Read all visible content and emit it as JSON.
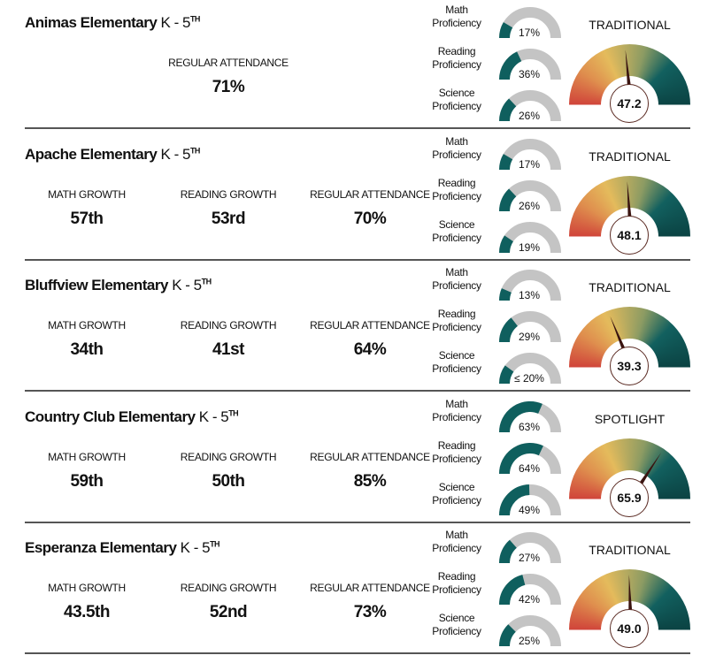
{
  "colors": {
    "fill": "#0f5f5e",
    "track": "#c4c4c4"
  },
  "gauge_range": [
    7,
    93
  ],
  "schools": [
    {
      "name": "Animas Elementary",
      "grade": "K - 5",
      "grade_sup": "TH",
      "stats": [
        {
          "label": "REGULAR ATTENDANCE",
          "value": "71%"
        }
      ],
      "proficiency": [
        {
          "label1": "Math",
          "label2": "Proficiency",
          "value": "17%",
          "pct": 17
        },
        {
          "label1": "Reading",
          "label2": "Proficiency",
          "value": "36%",
          "pct": 36
        },
        {
          "label1": "Science",
          "label2": "Proficiency",
          "value": "26%",
          "pct": 26
        }
      ],
      "rating": "TRADITIONAL",
      "score": "47.2"
    },
    {
      "name": "Apache Elementary",
      "grade": "K - 5",
      "grade_sup": "TH",
      "stats": [
        {
          "label": "MATH GROWTH",
          "value": "57th"
        },
        {
          "label": "READING GROWTH",
          "value": "53rd"
        },
        {
          "label": "REGULAR ATTENDANCE",
          "value": "70%"
        }
      ],
      "proficiency": [
        {
          "label1": "Math",
          "label2": "Proficiency",
          "value": "17%",
          "pct": 17
        },
        {
          "label1": "Reading",
          "label2": "Proficiency",
          "value": "26%",
          "pct": 26
        },
        {
          "label1": "Science",
          "label2": "Proficiency",
          "value": "19%",
          "pct": 19
        }
      ],
      "rating": "TRADITIONAL",
      "score": "48.1"
    },
    {
      "name": "Bluffview Elementary",
      "grade": "K - 5",
      "grade_sup": "TH",
      "stats": [
        {
          "label": "MATH GROWTH",
          "value": "34th"
        },
        {
          "label": "READING GROWTH",
          "value": "41st"
        },
        {
          "label": "REGULAR ATTENDANCE",
          "value": "64%"
        }
      ],
      "proficiency": [
        {
          "label1": "Math",
          "label2": "Proficiency",
          "value": "13%",
          "pct": 13
        },
        {
          "label1": "Reading",
          "label2": "Proficiency",
          "value": "29%",
          "pct": 29
        },
        {
          "label1": "Science",
          "label2": "Proficiency",
          "value": "≤ 20%",
          "pct": 20
        }
      ],
      "rating": "TRADITIONAL",
      "score": "39.3"
    },
    {
      "name": "Country Club Elementary",
      "grade": "K - 5",
      "grade_sup": "TH",
      "stats": [
        {
          "label": "MATH GROWTH",
          "value": "59th"
        },
        {
          "label": "READING GROWTH",
          "value": "50th"
        },
        {
          "label": "REGULAR ATTENDANCE",
          "value": "85%"
        }
      ],
      "proficiency": [
        {
          "label1": "Math",
          "label2": "Proficiency",
          "value": "63%",
          "pct": 63
        },
        {
          "label1": "Reading",
          "label2": "Proficiency",
          "value": "64%",
          "pct": 64
        },
        {
          "label1": "Science",
          "label2": "Proficiency",
          "value": "49%",
          "pct": 49
        }
      ],
      "rating": "SPOTLIGHT",
      "score": "65.9"
    },
    {
      "name": "Esperanza Elementary",
      "grade": "K - 5",
      "grade_sup": "TH",
      "stats": [
        {
          "label": "MATH GROWTH",
          "value": "43.5th"
        },
        {
          "label": "READING GROWTH",
          "value": "52nd"
        },
        {
          "label": "REGULAR ATTENDANCE",
          "value": "73%"
        }
      ],
      "proficiency": [
        {
          "label1": "Math",
          "label2": "Proficiency",
          "value": "27%",
          "pct": 27
        },
        {
          "label1": "Reading",
          "label2": "Proficiency",
          "value": "42%",
          "pct": 42
        },
        {
          "label1": "Science",
          "label2": "Proficiency",
          "value": "25%",
          "pct": 25
        }
      ],
      "rating": "TRADITIONAL",
      "score": "49.0"
    }
  ]
}
